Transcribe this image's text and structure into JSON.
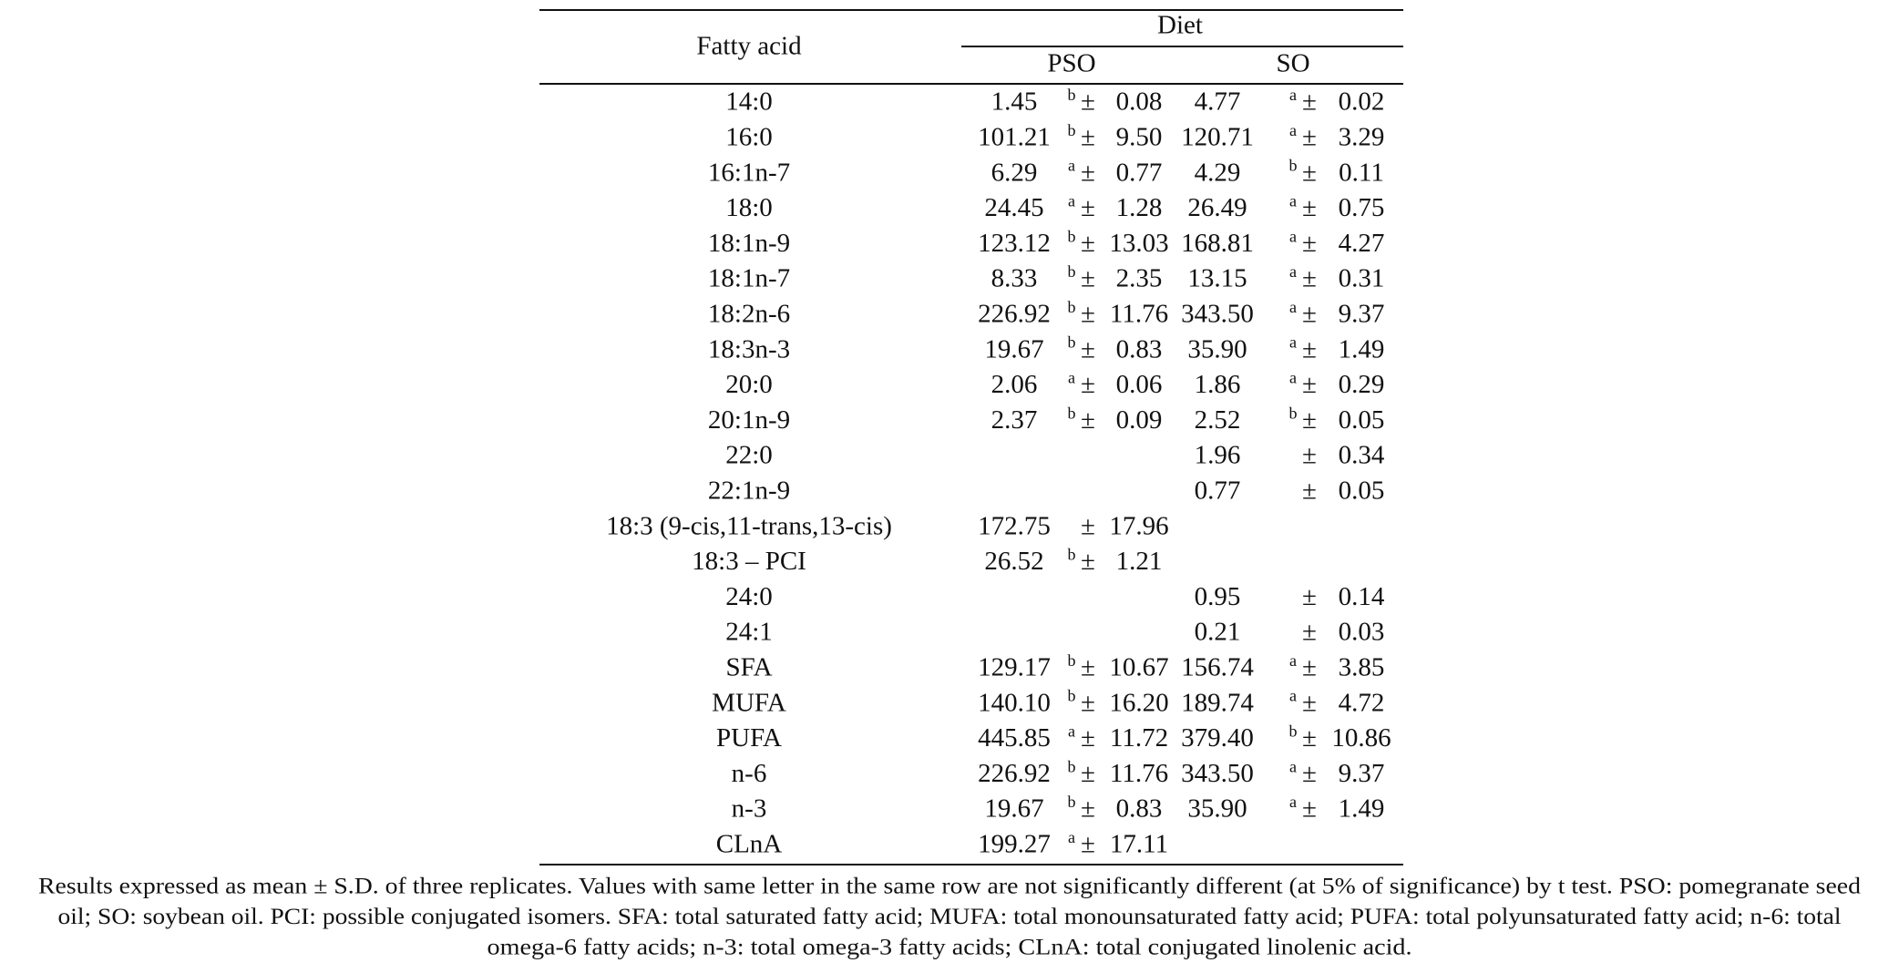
{
  "header": {
    "fatty_acid": "Fatty acid",
    "diet": "Diet",
    "pso": "PSO",
    "so": "SO"
  },
  "table": {
    "pm": "±",
    "rows": [
      {
        "label": "14:0",
        "pso": {
          "mean": "1.45",
          "letter": "b",
          "sd": "0.08"
        },
        "so": {
          "mean": "4.77",
          "letter": "a",
          "sd": "0.02"
        }
      },
      {
        "label": "16:0",
        "pso": {
          "mean": "101.21",
          "letter": "b",
          "sd": "9.50"
        },
        "so": {
          "mean": "120.71",
          "letter": "a",
          "sd": "3.29"
        }
      },
      {
        "label": "16:1n-7",
        "pso": {
          "mean": "6.29",
          "letter": "a",
          "sd": "0.77"
        },
        "so": {
          "mean": "4.29",
          "letter": "b",
          "sd": "0.11"
        }
      },
      {
        "label": "18:0",
        "pso": {
          "mean": "24.45",
          "letter": "a",
          "sd": "1.28"
        },
        "so": {
          "mean": "26.49",
          "letter": "a",
          "sd": "0.75"
        }
      },
      {
        "label": "18:1n-9",
        "pso": {
          "mean": "123.12",
          "letter": "b",
          "sd": "13.03"
        },
        "so": {
          "mean": "168.81",
          "letter": "a",
          "sd": "4.27"
        }
      },
      {
        "label": "18:1n-7",
        "pso": {
          "mean": "8.33",
          "letter": "b",
          "sd": "2.35"
        },
        "so": {
          "mean": "13.15",
          "letter": "a",
          "sd": "0.31"
        }
      },
      {
        "label": "18:2n-6",
        "pso": {
          "mean": "226.92",
          "letter": "b",
          "sd": "11.76"
        },
        "so": {
          "mean": "343.50",
          "letter": "a",
          "sd": "9.37"
        }
      },
      {
        "label": "18:3n-3",
        "pso": {
          "mean": "19.67",
          "letter": "b",
          "sd": "0.83"
        },
        "so": {
          "mean": "35.90",
          "letter": "a",
          "sd": "1.49"
        }
      },
      {
        "label": "20:0",
        "pso": {
          "mean": "2.06",
          "letter": "a",
          "sd": "0.06"
        },
        "so": {
          "mean": "1.86",
          "letter": "a",
          "sd": "0.29"
        }
      },
      {
        "label": "20:1n-9",
        "pso": {
          "mean": "2.37",
          "letter": "b",
          "sd": "0.09"
        },
        "so": {
          "mean": "2.52",
          "letter": "b",
          "sd": "0.05"
        }
      },
      {
        "label": "22:0",
        "so": {
          "mean": "1.96",
          "sd": "0.34"
        }
      },
      {
        "label": "22:1n-9",
        "so": {
          "mean": "0.77",
          "sd": "0.05"
        }
      },
      {
        "label": "18:3 (9-cis,11-trans,13-cis)",
        "pso": {
          "mean": "172.75",
          "sd": "17.96"
        }
      },
      {
        "label": "18:3 – PCI",
        "pso": {
          "mean": "26.52",
          "letter": "b",
          "sd": "1.21"
        }
      },
      {
        "label": "24:0",
        "so": {
          "mean": "0.95",
          "sd": "0.14"
        }
      },
      {
        "label": "24:1",
        "so": {
          "mean": "0.21",
          "sd": "0.03"
        }
      },
      {
        "label": "SFA",
        "pso": {
          "mean": "129.17",
          "letter": "b",
          "sd": "10.67"
        },
        "so": {
          "mean": "156.74",
          "letter": "a",
          "sd": "3.85"
        }
      },
      {
        "label": "MUFA",
        "pso": {
          "mean": "140.10",
          "letter": "b",
          "sd": "16.20"
        },
        "so": {
          "mean": "189.74",
          "letter": "a",
          "sd": "4.72"
        }
      },
      {
        "label": "PUFA",
        "pso": {
          "mean": "445.85",
          "letter": "a",
          "sd": "11.72"
        },
        "so": {
          "mean": "379.40",
          "letter": "b",
          "sd": "10.86"
        }
      },
      {
        "label": "n-6",
        "pso": {
          "mean": "226.92",
          "letter": "b",
          "sd": "11.76"
        },
        "so": {
          "mean": "343.50",
          "letter": "a",
          "sd": "9.37"
        }
      },
      {
        "label": "n-3",
        "pso": {
          "mean": "19.67",
          "letter": "b",
          "sd": "0.83"
        },
        "so": {
          "mean": "35.90",
          "letter": "a",
          "sd": "1.49"
        }
      },
      {
        "label": "CLnA",
        "pso": {
          "mean": "199.27",
          "letter": "a",
          "sd": "17.11"
        }
      }
    ]
  },
  "footnote": [
    "Results expressed as mean ± S.D. of three replicates. Values with same letter in the same row are not significantly different (at 5% of significance) by t test. PSO: pomegranate seed",
    "oil; SO: soybean oil. PCI: possible conjugated isomers. SFA: total saturated fatty acid; MUFA: total monounsaturated fatty acid; PUFA: total polyunsaturated fatty acid; n-6: total",
    "omega-6 fatty acids; n-3: total omega-3 fatty acids; CLnA: total conjugated linolenic acid."
  ]
}
